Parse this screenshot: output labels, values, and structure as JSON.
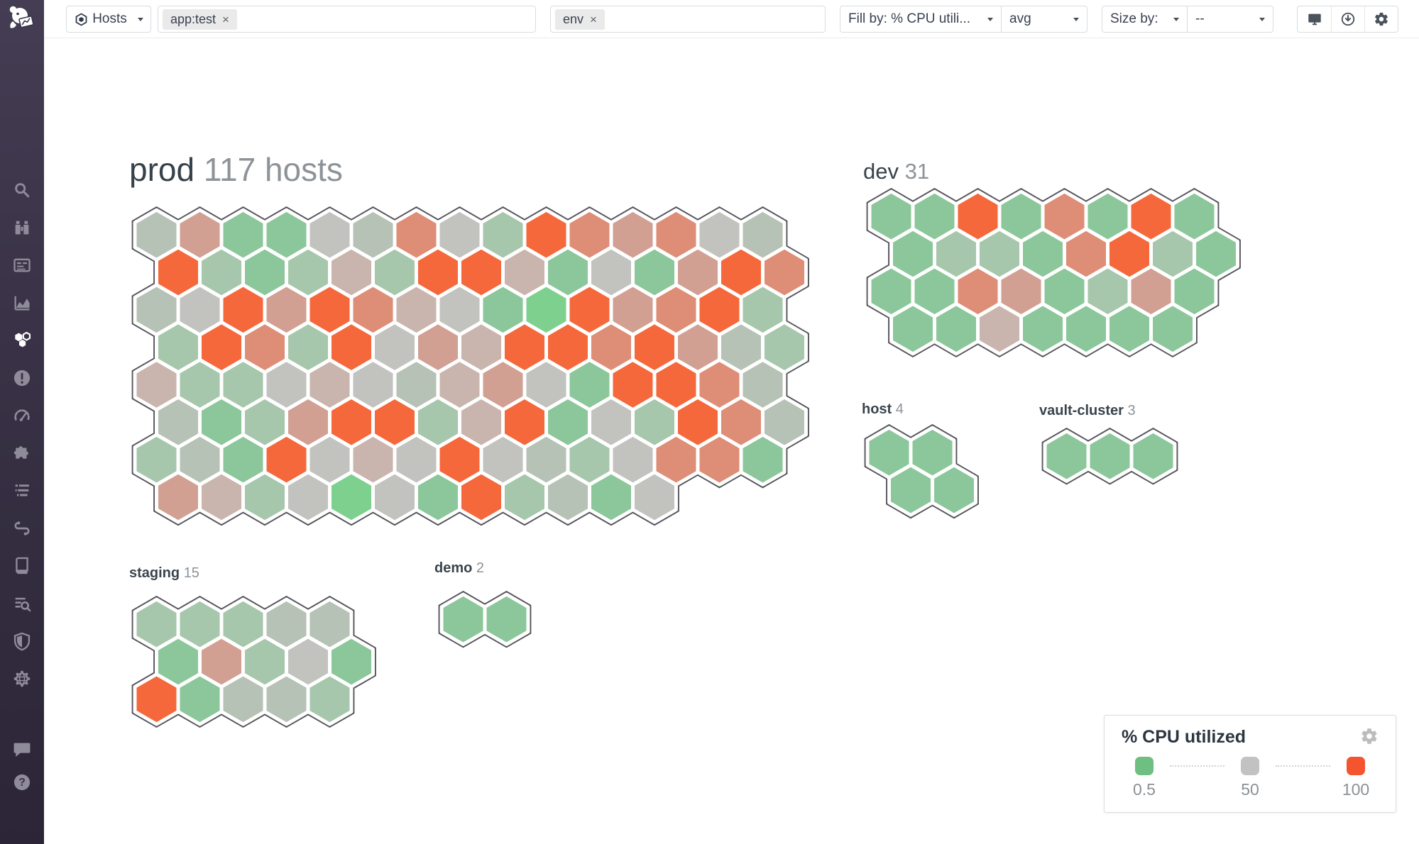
{
  "toolbar": {
    "hosts_label": "Hosts",
    "filter_tags": [
      {
        "text": "app:test"
      },
      {
        "text": "env"
      }
    ],
    "tag_remove_glyph": "×",
    "fill_by": {
      "label": "Fill by: % CPU utili...",
      "agg": "avg"
    },
    "size_by": {
      "label": "Size by:",
      "value": "--"
    },
    "icon_buttons": [
      "display",
      "download",
      "settings"
    ]
  },
  "sidebar": {
    "active_item": "infrastructure",
    "items": [
      "search",
      "watchdog",
      "dashboards",
      "metrics",
      "infrastructure",
      "monitors",
      "slo",
      "integrations",
      "logs",
      "apm",
      "notebooks",
      "log-explorer",
      "security",
      "synthetics"
    ],
    "footer_items": [
      "chat",
      "help"
    ]
  },
  "hostmap": {
    "outline_color": "#54545b",
    "palette": {
      "V": "#7ed08f",
      "G": "#8bc79a",
      "S": "#a6c7ab",
      "Y": "#b6c2b5",
      "N": "#c2c3bf",
      "P": "#c9b5ad",
      "L": "#d1a093",
      "M": "#de8d76",
      "O": "#f5683c"
    },
    "groups": [
      {
        "name": "prod",
        "count_label": "117 hosts",
        "rows": [
          {
            "o": 0,
            "c": "Y L G G N Y M N S O M L M N Y"
          },
          {
            "o": 0.5,
            "c": "O S G S P S O O P G N G L O M"
          },
          {
            "o": 0,
            "c": "Y N O L O M P N G V O L M O S"
          },
          {
            "o": 0.5,
            "c": "S O M S O N L P O O M O L Y S"
          },
          {
            "o": 0,
            "c": "P S S N P N Y P L N G O O M Y"
          },
          {
            "o": 0.5,
            "c": "Y G S L O O S P O G N S O M Y"
          },
          {
            "o": 0,
            "c": "S Y G O N P N O N Y S N M M G"
          },
          {
            "o": 0.5,
            "c": "L P S N V N G O S Y G N"
          }
        ]
      },
      {
        "name": "dev",
        "count_label": "31",
        "rows": [
          {
            "o": 0,
            "c": "G G O G M G O G"
          },
          {
            "o": 0.5,
            "c": "G S S G M O S G"
          },
          {
            "o": 0,
            "c": "G G M L G S L G"
          },
          {
            "o": 0.5,
            "c": "G G P G G G G"
          }
        ]
      },
      {
        "name": "host",
        "count_label": "4",
        "rows": [
          {
            "o": 0,
            "c": "G G"
          },
          {
            "o": 0.5,
            "c": "G G"
          }
        ]
      },
      {
        "name": "vault-cluster",
        "count_label": "3",
        "rows": [
          {
            "o": 0,
            "c": "G G G"
          }
        ]
      },
      {
        "name": "staging",
        "count_label": "15",
        "rows": [
          {
            "o": 0,
            "c": "S S S Y Y"
          },
          {
            "o": 0.5,
            "c": "G L S N G"
          },
          {
            "o": 0,
            "c": "O G Y Y S"
          }
        ]
      },
      {
        "name": "demo",
        "count_label": "2",
        "rows": [
          {
            "o": 0,
            "c": "G G"
          }
        ]
      }
    ]
  },
  "legend": {
    "title": "% CPU utilized",
    "stops": [
      {
        "color": "#6ebf81",
        "label": "0.5"
      },
      {
        "color": "#c2c2c2",
        "label": "50"
      },
      {
        "color": "#f4542e",
        "label": "100"
      }
    ]
  }
}
